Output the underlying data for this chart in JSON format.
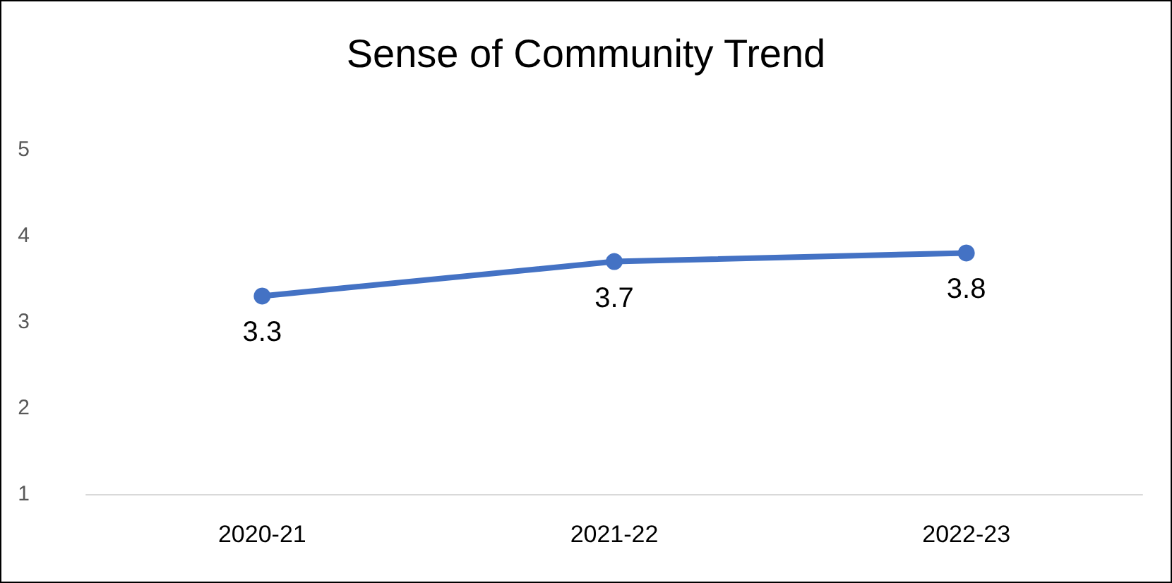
{
  "chart_data": {
    "type": "line",
    "title": "Sense of Community Trend",
    "categories": [
      "2020-21",
      "2021-22",
      "2022-23"
    ],
    "series": [
      {
        "color": "#4472c4",
        "values": [
          3.3,
          3.7,
          3.8
        ]
      }
    ],
    "ylim": [
      1,
      5
    ],
    "yticks": [
      1,
      2,
      3,
      4,
      5
    ],
    "grid": false,
    "marker": "circle",
    "line_style": "solid",
    "data_labels": true
  }
}
